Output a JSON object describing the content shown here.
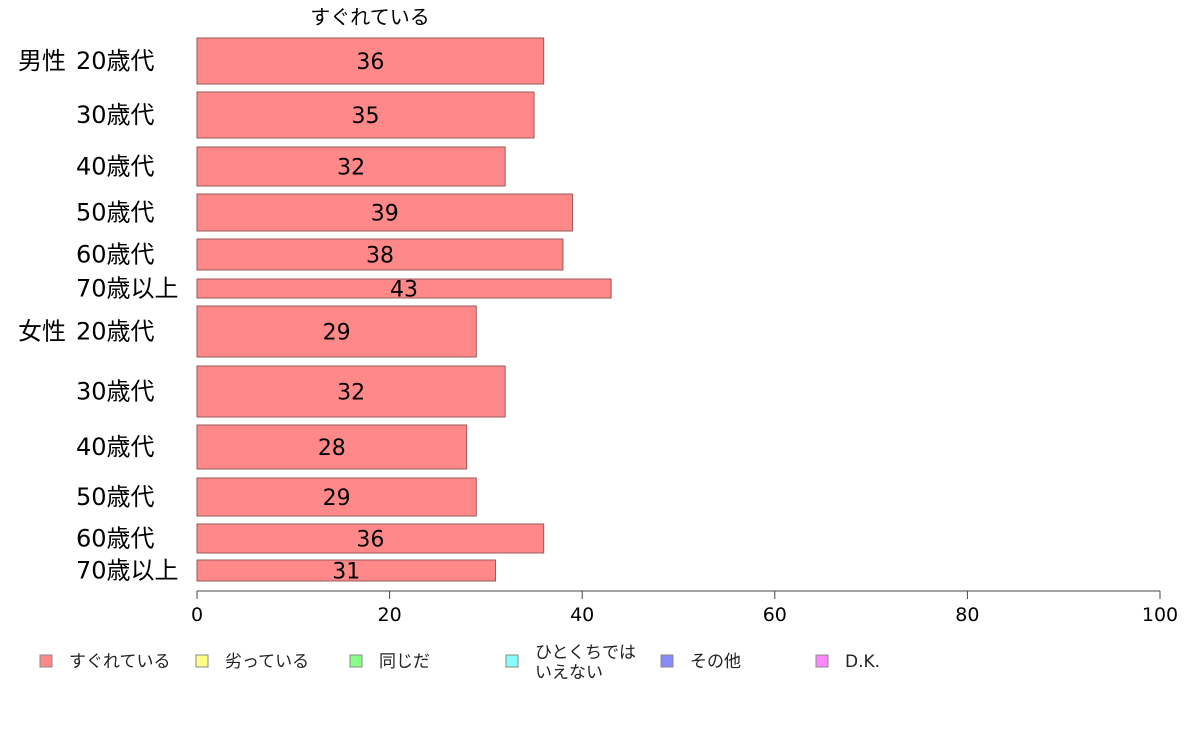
{
  "chart_data": {
    "type": "bar",
    "orientation": "horizontal",
    "stacked": true,
    "column_header": "すぐれている",
    "groups": [
      {
        "label": "男性",
        "rows": [
          {
            "label": "20歳代",
            "value": 36
          },
          {
            "label": "30歳代",
            "value": 35
          },
          {
            "label": "40歳代",
            "value": 32
          },
          {
            "label": "50歳代",
            "value": 39
          },
          {
            "label": "60歳代",
            "value": 38
          },
          {
            "label": "70歳以上",
            "value": 43
          }
        ]
      },
      {
        "label": "女性",
        "rows": [
          {
            "label": "20歳代",
            "value": 29
          },
          {
            "label": "30歳代",
            "value": 32
          },
          {
            "label": "40歳代",
            "value": 28
          },
          {
            "label": "50歳代",
            "value": 29
          },
          {
            "label": "60歳代",
            "value": 36
          },
          {
            "label": "70歳以上",
            "value": 31
          }
        ]
      }
    ],
    "xlim": [
      0,
      100
    ],
    "xticks": [
      0,
      20,
      40,
      60,
      80,
      100
    ],
    "series": [
      {
        "name": "すぐれている",
        "color": "#ff8888"
      },
      {
        "name": "劣っている",
        "color": "#ffff88"
      },
      {
        "name": "同じだ",
        "color": "#88ff88"
      },
      {
        "name": "ひとくちでは\nいえない",
        "color": "#88ffff"
      },
      {
        "name": "その他",
        "color": "#8888ff"
      },
      {
        "name": "D.K.",
        "color": "#ff88ff"
      }
    ],
    "legend_position": "bottom",
    "grid": false
  }
}
